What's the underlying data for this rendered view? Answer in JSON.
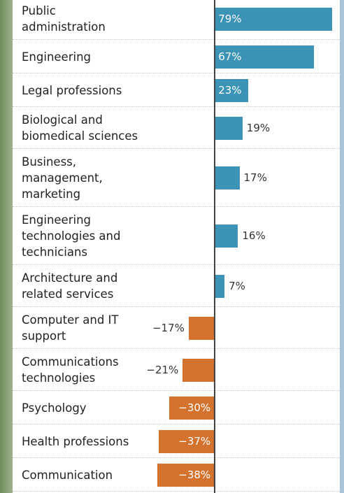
{
  "chart_data": {
    "type": "bar",
    "orientation": "horizontal",
    "categories": [
      "Public\nadministration",
      "Engineering",
      "Legal professions",
      "Biological and\nbiomedical sciences",
      "Business,\nmanagement,\nmarketing",
      "Engineering\ntechnologies and\ntechnicians",
      "Architecture and\nrelated services",
      "Computer and IT\nsupport",
      "Communications\ntechnologies",
      "Psychology",
      "Health professions",
      "Communication"
    ],
    "values": [
      79,
      67,
      23,
      19,
      17,
      16,
      7,
      -17,
      -21,
      -30,
      -37,
      -38
    ],
    "value_labels": [
      "79%",
      "67%",
      "23%",
      "19%",
      "17%",
      "16%",
      "7%",
      "−17%",
      "−21%",
      "−30%",
      "−37%",
      "−38%"
    ],
    "positive_color": "#3b93b6",
    "negative_color": "#d2722c"
  }
}
